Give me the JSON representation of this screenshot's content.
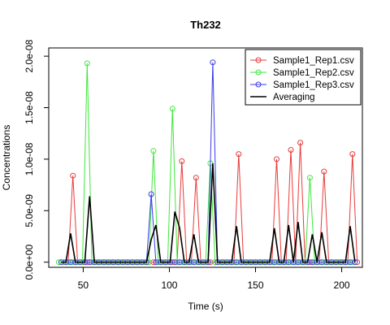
{
  "chart_data": {
    "type": "line",
    "title": "Th232",
    "xlabel": "Time (s)",
    "ylabel": "Concentrations",
    "xlim": [
      30,
      212
    ],
    "ylim": [
      -5e-10,
      2.08e-08
    ],
    "x_ticks": [
      50,
      100,
      150,
      200
    ],
    "x_tick_labels": [
      "50",
      "100",
      "150",
      "200"
    ],
    "y_ticks": [
      0,
      5e-09,
      1e-08,
      1.5e-08,
      2e-08
    ],
    "y_tick_labels": [
      "0.0e+00",
      "5.0e-09",
      "1.0e-08",
      "1.5e-08",
      "2.0e-08"
    ],
    "legend_position": "top-right",
    "grid": false,
    "series": [
      {
        "name": "Sample1_Rep1.csv",
        "color": "#e83b3b",
        "marker": "circle-open",
        "x_start": 38.5,
        "x_step": 2.75,
        "n": 63,
        "peaks": [
          [
            2,
            8.4e-09
          ],
          [
            25,
            9.8e-09
          ],
          [
            28,
            8.2e-09
          ],
          [
            37,
            1.05e-08
          ],
          [
            45,
            1e-08
          ],
          [
            48,
            1.09e-08
          ],
          [
            50,
            1.16e-08
          ],
          [
            55,
            8.8e-09
          ],
          [
            61,
            1.05e-08
          ]
        ]
      },
      {
        "name": "Sample1_Rep2.csv",
        "color": "#3ee83b",
        "marker": "circle-open",
        "x_start": 35.8,
        "x_step": 2.75,
        "n": 63,
        "peaks": [
          [
            6,
            1.93e-08
          ],
          [
            20,
            1.08e-08
          ],
          [
            24,
            1.49e-08
          ],
          [
            32,
            9.6e-09
          ],
          [
            53,
            8.2e-09
          ]
        ]
      },
      {
        "name": "Sample1_Rep3.csv",
        "color": "#3b3be8",
        "marker": "circle-open",
        "x_start": 37.2,
        "x_step": 2.75,
        "n": 63,
        "peaks": [
          [
            19,
            6.6e-09
          ],
          [
            32,
            1.94e-08
          ]
        ]
      },
      {
        "name": "Averaging",
        "color": "#000000",
        "marker": "none",
        "x_start": 37.2,
        "x_step": 2.75,
        "n": 63,
        "peaks": [
          [
            2,
            2.8e-09
          ],
          [
            6,
            6.4e-09
          ],
          [
            19,
            2.2e-09
          ],
          [
            20,
            3.6e-09
          ],
          [
            24,
            4.9e-09
          ],
          [
            25,
            3.3e-09
          ],
          [
            28,
            2.7e-09
          ],
          [
            32,
            9.6e-09
          ],
          [
            37,
            3.5e-09
          ],
          [
            45,
            3.3e-09
          ],
          [
            48,
            3.6e-09
          ],
          [
            50,
            3.9e-09
          ],
          [
            53,
            2.7e-09
          ],
          [
            55,
            2.9e-09
          ],
          [
            61,
            3.5e-09
          ]
        ]
      }
    ]
  }
}
